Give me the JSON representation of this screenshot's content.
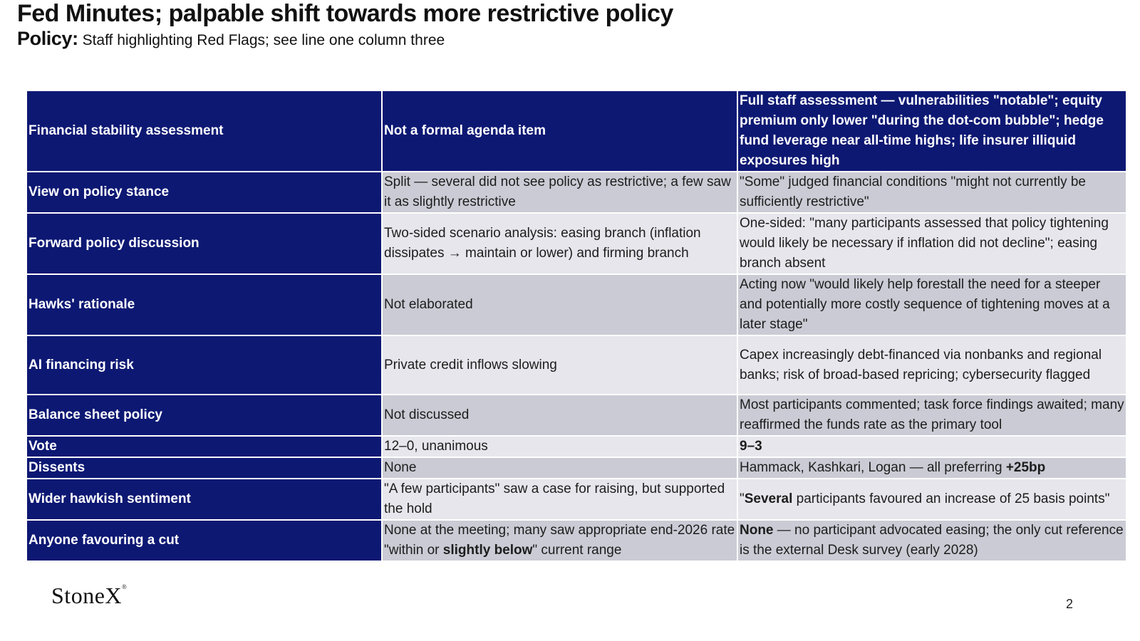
{
  "title": "Fed Minutes; palpable shift towards more restrictive policy",
  "subtitle": {
    "label": "Policy:",
    "text": "Staff highlighting Red Flags; see line one column three"
  },
  "table": {
    "header": {
      "label": "Financial stability assessment",
      "col2": "Not a formal agenda item",
      "col3": "Full staff assessment — vulnerabilities \"notable\"; equity premium only lower \"during the dot-com bubble\"; hedge fund leverage near all-time highs; life insurer illiquid exposures high"
    },
    "rows": [
      {
        "label": "View on policy stance",
        "col2": "Split — several did not see policy as restrictive; a few saw it as slightly restrictive",
        "col3": "\"Some\" judged financial conditions \"might not currently be sufficiently restrictive\""
      },
      {
        "label": "Forward policy discussion",
        "col2": "Two-sided scenario analysis: easing branch (inflation dissipates → maintain or lower) and firming branch",
        "col3": "One-sided: \"many participants assessed that policy tightening would likely be necessary if inflation did not decline\"; easing branch absent"
      },
      {
        "label": "Hawks' rationale",
        "col2": "Not elaborated",
        "col3": "Acting now \"would likely help forestall the need for a steeper and potentially more costly sequence of tightening moves at a later stage\""
      },
      {
        "label": "AI financing risk",
        "col2": "Private credit inflows slowing",
        "col3": "Capex increasingly debt-financed via nonbanks and regional banks; risk of broad-based repricing; cybersecurity flagged"
      },
      {
        "label": "Balance sheet policy",
        "col2": "Not discussed",
        "col3": "Most participants commented; task force findings awaited; many reaffirmed the funds rate as the primary tool"
      },
      {
        "label": "Vote",
        "col2": "12–0, unanimous",
        "col3_bold": "9–3"
      },
      {
        "label": "Dissents",
        "col2": "None",
        "col3_a": "Hammack, Kashkari, Logan — all preferring ",
        "col3_bold": "+25bp"
      },
      {
        "label": "Wider hawkish sentiment",
        "col2": "\"A few participants\" saw a case for raising, but supported the hold",
        "col3_a": "\"",
        "col3_bold": "Several",
        "col3_b": " participants favoured an increase of 25 basis points\""
      },
      {
        "label": "Anyone favouring a cut",
        "col2_a": "None at the meeting; many saw appropriate end-2026 rate \"within or ",
        "col2_bold": "slightly below",
        "col2_b": "\" current range",
        "col3_bold": "None",
        "col3_b": " — no participant advocated easing; the only cut reference is the external Desk survey (early 2028)"
      }
    ]
  },
  "footer": {
    "logo": "StoneX",
    "logo_mark": "®",
    "page": "2"
  },
  "colors": {
    "header_navy": "#0d1873",
    "row_dark": "#cbcbd5",
    "row_light": "#e6e6ec"
  }
}
